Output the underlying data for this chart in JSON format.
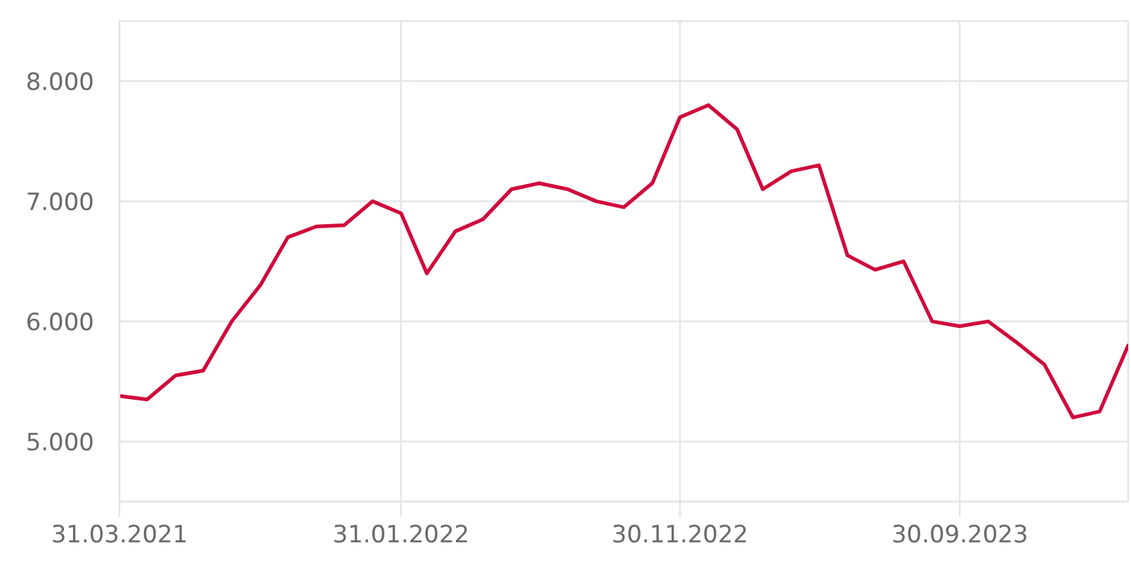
{
  "chart_data": {
    "type": "line",
    "x": [
      "2021-03-31",
      "2021-04-30",
      "2021-05-31",
      "2021-06-30",
      "2021-07-31",
      "2021-08-31",
      "2021-09-30",
      "2021-10-31",
      "2021-11-30",
      "2021-12-31",
      "2022-01-31",
      "2022-02-28",
      "2022-03-31",
      "2022-04-30",
      "2022-05-31",
      "2022-06-30",
      "2022-07-31",
      "2022-08-31",
      "2022-09-30",
      "2022-10-31",
      "2022-11-30",
      "2022-12-31",
      "2023-01-31",
      "2023-02-28",
      "2023-03-31",
      "2023-04-30",
      "2023-05-31",
      "2023-06-30",
      "2023-07-31",
      "2023-08-31",
      "2023-09-30",
      "2023-10-31",
      "2023-11-30",
      "2023-12-31",
      "2024-01-31",
      "2024-02-29",
      "2024-03-31"
    ],
    "values": [
      5380,
      5350,
      5550,
      5590,
      6000,
      6300,
      6700,
      6790,
      6800,
      7000,
      6900,
      6400,
      6750,
      6850,
      7100,
      7150,
      7100,
      7000,
      6950,
      7150,
      7700,
      7800,
      7600,
      7100,
      7250,
      7300,
      6550,
      6430,
      6500,
      6000,
      5960,
      6000,
      5830,
      5640,
      5200,
      5250,
      5800
    ],
    "color": "#d00a3c",
    "xlim": [
      "2021-03-31",
      "2024-03-31"
    ],
    "xticks": [
      {
        "value": "2021-03-31",
        "label": "31.03.2021"
      },
      {
        "value": "2022-01-31",
        "label": "31.01.2022"
      },
      {
        "value": "2022-11-30",
        "label": "30.11.2022"
      },
      {
        "value": "2023-09-30",
        "label": "30.09.2023"
      }
    ],
    "ylim": [
      4500,
      8500
    ],
    "yticks": [
      {
        "value": 5000,
        "label": "5.000"
      },
      {
        "value": 6000,
        "label": "6.000"
      },
      {
        "value": 7000,
        "label": "7.000"
      },
      {
        "value": 8000,
        "label": "8.000"
      }
    ],
    "grid": true
  }
}
